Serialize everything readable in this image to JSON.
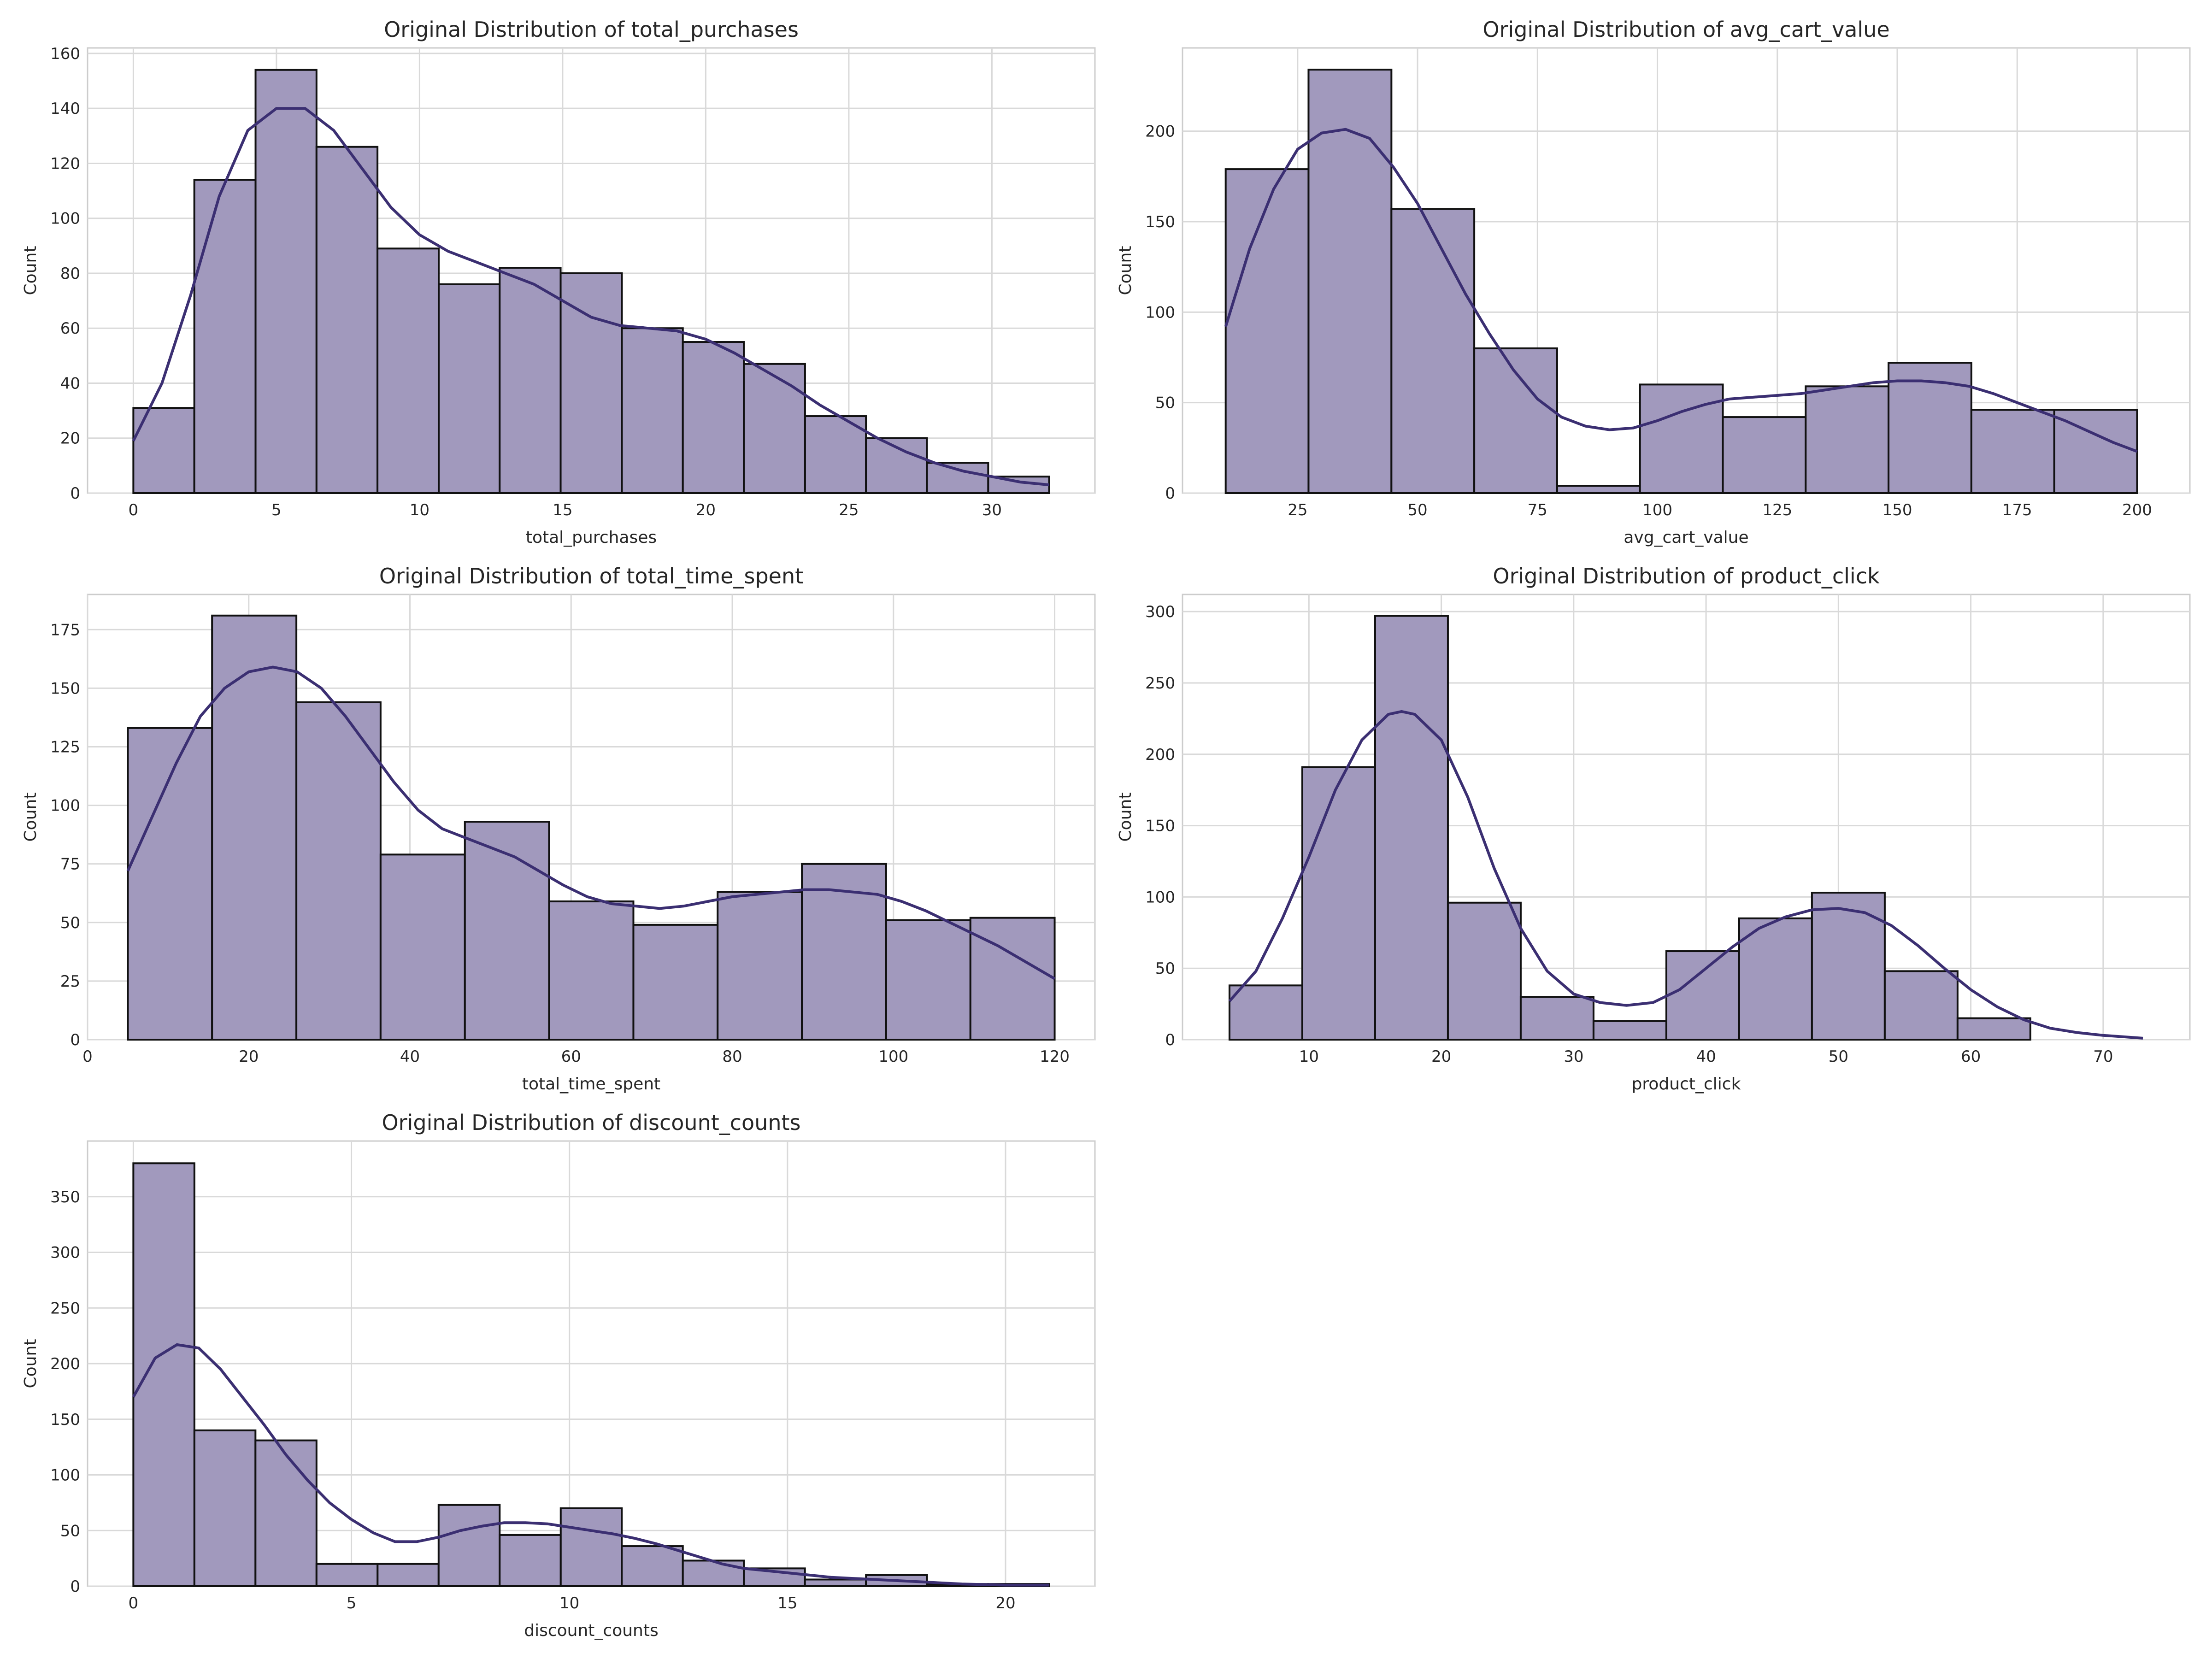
{
  "chart_data": [
    {
      "type": "bar",
      "title": "Original Distribution of total_purchases",
      "xlabel": "total_purchases",
      "ylabel": "Count",
      "xlim": [
        -1.6,
        33.6
      ],
      "ylim": [
        0,
        162
      ],
      "x_ticks": [
        0,
        5,
        10,
        15,
        20,
        25,
        30
      ],
      "y_ticks": [
        0,
        20,
        40,
        60,
        80,
        100,
        120,
        140,
        160
      ],
      "bin_edges": [
        0,
        2.13,
        4.27,
        6.4,
        8.53,
        10.67,
        12.8,
        14.93,
        17.07,
        19.2,
        21.33,
        23.47,
        25.6,
        27.73,
        29.87,
        32
      ],
      "values": [
        31,
        114,
        154,
        126,
        89,
        76,
        82,
        80,
        60,
        55,
        47,
        28,
        20,
        11,
        6
      ],
      "kde": [
        [
          0,
          19
        ],
        [
          1,
          40
        ],
        [
          2,
          72
        ],
        [
          3,
          108
        ],
        [
          4,
          132
        ],
        [
          5,
          140
        ],
        [
          6,
          140
        ],
        [
          7,
          132
        ],
        [
          8,
          118
        ],
        [
          9,
          104
        ],
        [
          10,
          94
        ],
        [
          11,
          88
        ],
        [
          12,
          84
        ],
        [
          13,
          80
        ],
        [
          14,
          76
        ],
        [
          15,
          70
        ],
        [
          16,
          64
        ],
        [
          17,
          61
        ],
        [
          18,
          60
        ],
        [
          19,
          59
        ],
        [
          20,
          56
        ],
        [
          21,
          51
        ],
        [
          22,
          45
        ],
        [
          23,
          39
        ],
        [
          24,
          32
        ],
        [
          25,
          26
        ],
        [
          26,
          20
        ],
        [
          27,
          15
        ],
        [
          28,
          11
        ],
        [
          29,
          8
        ],
        [
          30,
          6
        ],
        [
          31,
          4
        ],
        [
          32,
          3
        ]
      ],
      "grid": true
    },
    {
      "type": "bar",
      "title": "Original Distribution of avg_cart_value",
      "xlabel": "avg_cart_value",
      "ylabel": "Count",
      "xlim": [
        1,
        211
      ],
      "ylim": [
        0,
        246
      ],
      "x_ticks": [
        25,
        50,
        75,
        100,
        125,
        150,
        175,
        200
      ],
      "y_ticks": [
        0,
        50,
        100,
        150,
        200
      ],
      "bin_edges": [
        10,
        27.27,
        44.55,
        61.82,
        79.09,
        96.36,
        113.64,
        130.91,
        148.18,
        165.45,
        182.73,
        200
      ],
      "values": [
        179,
        234,
        157,
        80,
        4,
        60,
        42,
        59,
        72,
        46,
        46
      ],
      "kde": [
        [
          10,
          92
        ],
        [
          15,
          135
        ],
        [
          20,
          168
        ],
        [
          25,
          190
        ],
        [
          30,
          199
        ],
        [
          35,
          201
        ],
        [
          40,
          196
        ],
        [
          45,
          180
        ],
        [
          50,
          160
        ],
        [
          55,
          135
        ],
        [
          60,
          110
        ],
        [
          65,
          88
        ],
        [
          70,
          68
        ],
        [
          75,
          52
        ],
        [
          80,
          42
        ],
        [
          85,
          37
        ],
        [
          90,
          35
        ],
        [
          95,
          36
        ],
        [
          100,
          40
        ],
        [
          105,
          45
        ],
        [
          110,
          49
        ],
        [
          115,
          52
        ],
        [
          120,
          53
        ],
        [
          125,
          54
        ],
        [
          130,
          55
        ],
        [
          135,
          57
        ],
        [
          140,
          59
        ],
        [
          145,
          61
        ],
        [
          150,
          62
        ],
        [
          155,
          62
        ],
        [
          160,
          61
        ],
        [
          165,
          59
        ],
        [
          170,
          55
        ],
        [
          175,
          50
        ],
        [
          180,
          45
        ],
        [
          185,
          40
        ],
        [
          190,
          34
        ],
        [
          195,
          28
        ],
        [
          200,
          23
        ]
      ],
      "grid": true
    },
    {
      "type": "bar",
      "title": "Original Distribution of total_time_spent",
      "xlabel": "total_time_spent",
      "ylabel": "Count",
      "xlim": [
        0,
        125
      ],
      "ylim": [
        0,
        190
      ],
      "x_ticks": [
        0,
        20,
        40,
        60,
        80,
        100,
        120
      ],
      "y_ticks": [
        0,
        25,
        50,
        75,
        100,
        125,
        150,
        175
      ],
      "bin_edges": [
        5,
        15.45,
        25.91,
        36.36,
        46.82,
        57.27,
        67.73,
        78.18,
        88.64,
        99.09,
        109.55,
        120
      ],
      "values": [
        133,
        181,
        144,
        79,
        93,
        59,
        49,
        63,
        75,
        51,
        52
      ],
      "kde": [
        [
          5,
          72
        ],
        [
          8,
          95
        ],
        [
          11,
          118
        ],
        [
          14,
          138
        ],
        [
          17,
          150
        ],
        [
          20,
          157
        ],
        [
          23,
          159
        ],
        [
          26,
          157
        ],
        [
          29,
          150
        ],
        [
          32,
          138
        ],
        [
          35,
          124
        ],
        [
          38,
          110
        ],
        [
          41,
          98
        ],
        [
          44,
          90
        ],
        [
          47,
          86
        ],
        [
          50,
          82
        ],
        [
          53,
          78
        ],
        [
          56,
          72
        ],
        [
          59,
          66
        ],
        [
          62,
          61
        ],
        [
          65,
          58
        ],
        [
          68,
          57
        ],
        [
          71,
          56
        ],
        [
          74,
          57
        ],
        [
          77,
          59
        ],
        [
          80,
          61
        ],
        [
          83,
          62
        ],
        [
          86,
          63
        ],
        [
          89,
          64
        ],
        [
          92,
          64
        ],
        [
          95,
          63
        ],
        [
          98,
          62
        ],
        [
          101,
          59
        ],
        [
          104,
          55
        ],
        [
          107,
          50
        ],
        [
          110,
          45
        ],
        [
          113,
          40
        ],
        [
          116,
          34
        ],
        [
          119,
          28
        ],
        [
          120,
          26
        ]
      ],
      "grid": true
    },
    {
      "type": "bar",
      "title": "Original Distribution of product_click",
      "xlabel": "product_click",
      "ylabel": "Count",
      "xlim": [
        0.45,
        76.55
      ],
      "ylim": [
        0,
        312
      ],
      "x_ticks": [
        10,
        20,
        30,
        40,
        50,
        60,
        70
      ],
      "y_ticks": [
        0,
        50,
        100,
        150,
        200,
        250,
        300
      ],
      "bin_edges": [
        4,
        9.5,
        15,
        20.5,
        26,
        31.5,
        37,
        42.5,
        48,
        53.5,
        59,
        64.5,
        70
      ],
      "values": [
        38,
        191,
        297,
        96,
        30,
        13,
        62,
        85,
        103,
        48,
        15,
        0
      ],
      "kde": [
        [
          4,
          27
        ],
        [
          6,
          48
        ],
        [
          8,
          85
        ],
        [
          10,
          128
        ],
        [
          12,
          175
        ],
        [
          14,
          210
        ],
        [
          16,
          228
        ],
        [
          17,
          230
        ],
        [
          18,
          228
        ],
        [
          20,
          210
        ],
        [
          22,
          170
        ],
        [
          24,
          120
        ],
        [
          26,
          78
        ],
        [
          28,
          48
        ],
        [
          30,
          32
        ],
        [
          32,
          26
        ],
        [
          34,
          24
        ],
        [
          36,
          26
        ],
        [
          38,
          35
        ],
        [
          40,
          50
        ],
        [
          42,
          65
        ],
        [
          44,
          78
        ],
        [
          46,
          86
        ],
        [
          48,
          91
        ],
        [
          50,
          92
        ],
        [
          52,
          89
        ],
        [
          54,
          80
        ],
        [
          56,
          66
        ],
        [
          58,
          50
        ],
        [
          60,
          35
        ],
        [
          62,
          23
        ],
        [
          64,
          14
        ],
        [
          66,
          8
        ],
        [
          68,
          5
        ],
        [
          70,
          3
        ],
        [
          73,
          1
        ]
      ],
      "grid": true
    },
    {
      "type": "bar",
      "title": "Original Distribution of discount_counts",
      "xlabel": "discount_counts",
      "ylabel": "Count",
      "xlim": [
        -1.05,
        22.05
      ],
      "ylim": [
        0,
        400
      ],
      "x_ticks": [
        0,
        5,
        10,
        15,
        20
      ],
      "y_ticks": [
        0,
        50,
        100,
        150,
        200,
        250,
        300,
        350
      ],
      "bin_edges": [
        0,
        1.4,
        2.8,
        4.2,
        5.6,
        7,
        8.4,
        9.8,
        11.2,
        12.6,
        14,
        15.4,
        16.8,
        18.2,
        19.6,
        21
      ],
      "values": [
        380,
        140,
        131,
        20,
        20,
        73,
        46,
        70,
        36,
        23,
        16,
        6,
        10,
        2,
        2
      ],
      "kde": [
        [
          0,
          170
        ],
        [
          0.5,
          205
        ],
        [
          1,
          217
        ],
        [
          1.5,
          214
        ],
        [
          2,
          195
        ],
        [
          2.5,
          170
        ],
        [
          3,
          145
        ],
        [
          3.5,
          118
        ],
        [
          4,
          95
        ],
        [
          4.5,
          75
        ],
        [
          5,
          60
        ],
        [
          5.5,
          48
        ],
        [
          6,
          40
        ],
        [
          6.5,
          40
        ],
        [
          7,
          44
        ],
        [
          7.5,
          50
        ],
        [
          8,
          54
        ],
        [
          8.5,
          57
        ],
        [
          9,
          57
        ],
        [
          9.5,
          56
        ],
        [
          10,
          53
        ],
        [
          10.5,
          50
        ],
        [
          11,
          47
        ],
        [
          11.5,
          43
        ],
        [
          12,
          38
        ],
        [
          12.5,
          32
        ],
        [
          13,
          26
        ],
        [
          13.5,
          20
        ],
        [
          14,
          16
        ],
        [
          15,
          12
        ],
        [
          16,
          8
        ],
        [
          17,
          6
        ],
        [
          18,
          4
        ],
        [
          19,
          2
        ],
        [
          20,
          1
        ],
        [
          21,
          1
        ]
      ],
      "grid": true
    }
  ],
  "colors": {
    "bar_fill": "#a199bd",
    "bar_edge": "#111111",
    "kde_line": "#3b2f72",
    "grid": "#d9d9d9"
  }
}
